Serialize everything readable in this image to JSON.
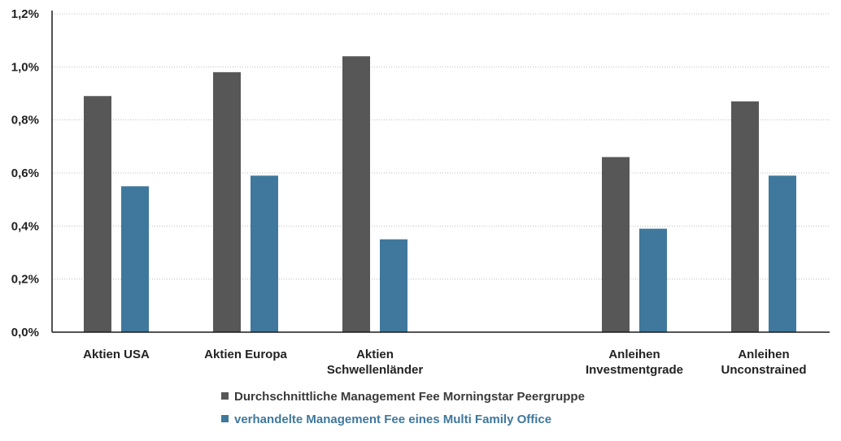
{
  "chart_data": {
    "type": "bar",
    "title": "",
    "xlabel": "",
    "ylabel": "",
    "ylim": [
      0,
      1.2
    ],
    "yticks": [
      "0,0%",
      "0,2%",
      "0,4%",
      "0,6%",
      "0,8%",
      "1,0%",
      "1,2%"
    ],
    "ytick_values": [
      0,
      0.2,
      0.4,
      0.6,
      0.8,
      1.0,
      1.2
    ],
    "grid": true,
    "legend_position": "bottom",
    "categories": [
      [
        "Aktien USA"
      ],
      [
        "Aktien Europa"
      ],
      [
        "Aktien",
        "Schwellenländer"
      ],
      [],
      [
        "Anleihen",
        "Investmentgrade"
      ],
      [
        "Anleihen",
        "Unconstrained"
      ]
    ],
    "series": [
      {
        "name": "Durchschnittliche Management Fee Morningstar Peergruppe",
        "color": "#575757",
        "values": [
          0.89,
          0.98,
          1.04,
          null,
          0.66,
          0.87
        ]
      },
      {
        "name": "verhandelte Management Fee eines Multi Family Office",
        "color": "#3f789c",
        "values": [
          0.55,
          0.59,
          0.35,
          null,
          0.39,
          0.59
        ]
      }
    ]
  }
}
